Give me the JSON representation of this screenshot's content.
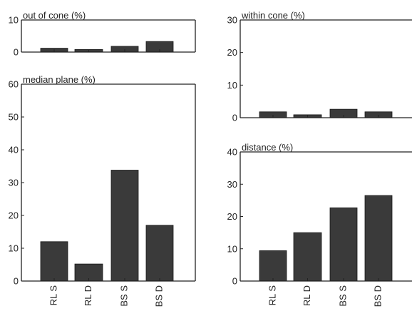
{
  "chart_data": [
    {
      "type": "bar",
      "title": "out of cone (%)",
      "categories": [
        "RL S",
        "RL D",
        "BS S",
        "BS D"
      ],
      "values": [
        1.2,
        0.8,
        1.8,
        3.3
      ],
      "ylim": [
        0,
        10
      ],
      "yticks": [
        0,
        10
      ],
      "show_xticklabels": false,
      "grid": false
    },
    {
      "type": "bar",
      "title": "median plane (%)",
      "categories": [
        "RL S",
        "RL D",
        "BS S",
        "BS D"
      ],
      "values": [
        12,
        5.2,
        33.8,
        17
      ],
      "ylim": [
        0,
        60
      ],
      "yticks": [
        0,
        10,
        20,
        30,
        40,
        50,
        60
      ],
      "show_xticklabels": true,
      "grid": false
    },
    {
      "type": "bar",
      "title": "within cone (%)",
      "categories": [
        "RL S",
        "RL D",
        "BS S",
        "BS D"
      ],
      "values": [
        1.8,
        0.9,
        2.6,
        1.8
      ],
      "ylim": [
        0,
        30
      ],
      "yticks": [
        0,
        10,
        20,
        30
      ],
      "show_xticklabels": false,
      "grid": false
    },
    {
      "type": "bar",
      "title": "distance (%)",
      "categories": [
        "RL S",
        "RL D",
        "BS S",
        "BS D"
      ],
      "values": [
        9.4,
        15,
        22.7,
        26.5
      ],
      "ylim": [
        0,
        40
      ],
      "yticks": [
        0,
        10,
        20,
        30,
        40
      ],
      "show_xticklabels": true,
      "grid": false
    }
  ],
  "colors": {
    "bar": "#3a3a3a",
    "axis": "#222222"
  }
}
